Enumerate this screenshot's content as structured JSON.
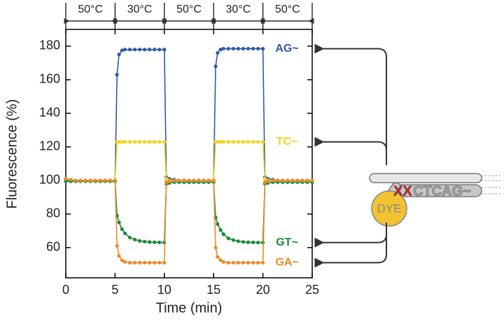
{
  "chart_data": {
    "type": "line",
    "xlabel": "Time (min)",
    "ylabel": "Fluorescence (%)",
    "xlim": [
      0,
      25
    ],
    "xticks": [
      0,
      5,
      10,
      15,
      20,
      25
    ],
    "ylim": [
      42,
      190
    ],
    "yticks": [
      60,
      80,
      100,
      120,
      140,
      160,
      180
    ],
    "temperatures": [
      "50°C",
      "30°C",
      "50°C",
      "30°C",
      "50°C"
    ],
    "x": [
      0,
      0.5,
      1,
      1.5,
      2,
      2.5,
      3,
      3.5,
      4,
      4.5,
      5,
      5.2,
      5.4,
      5.7,
      6,
      6.5,
      7,
      7.5,
      8,
      8.5,
      9,
      9.5,
      10,
      10.2,
      10.5,
      11,
      11.5,
      12,
      12.5,
      13,
      13.5,
      14,
      14.5,
      15,
      15.2,
      15.4,
      15.7,
      16,
      16.5,
      17,
      17.5,
      18,
      18.5,
      19,
      19.5,
      20,
      20.2,
      20.5,
      21,
      21.5,
      22,
      22.5,
      23,
      23.5,
      24,
      24.5,
      25
    ],
    "series": [
      {
        "name": "AG~",
        "color": "#2f5aa8",
        "values": [
          100,
          100,
          100,
          100,
          100,
          100,
          100,
          100,
          100,
          100,
          100,
          163,
          175,
          177.5,
          178,
          178,
          178,
          178,
          178,
          178,
          178,
          178,
          178,
          102,
          101,
          100.5,
          100,
          100,
          100,
          100,
          100,
          100,
          100,
          100,
          168,
          176,
          178,
          178.5,
          178.5,
          178.5,
          178.5,
          178.5,
          178.5,
          178.5,
          178.5,
          178.5,
          102,
          101,
          100.5,
          100,
          100,
          100,
          100,
          100,
          100,
          100,
          100
        ]
      },
      {
        "name": "TC~",
        "color": "#f2d41c",
        "values": [
          101,
          100,
          100,
          100,
          100,
          100,
          100,
          100,
          100,
          100,
          100,
          123,
          123,
          123,
          123,
          123,
          123,
          123,
          123,
          123,
          123,
          123,
          123,
          101,
          100,
          100,
          100,
          100,
          100,
          100,
          100,
          100,
          100,
          100,
          123,
          123,
          123,
          123,
          123,
          123,
          123,
          123,
          123,
          123,
          123,
          123,
          101,
          100,
          100,
          100,
          100,
          100,
          100,
          100,
          100,
          100,
          100
        ]
      },
      {
        "name": "GT~",
        "color": "#1a8a3a",
        "values": [
          99.5,
          99.5,
          99.5,
          99.5,
          99.5,
          99.5,
          99.5,
          99.5,
          99.5,
          99.5,
          99.5,
          79,
          75,
          71,
          68.5,
          66,
          64.8,
          64,
          63.6,
          63.3,
          63.2,
          63.1,
          63,
          98,
          98.5,
          99,
          99,
          99,
          99,
          99,
          99,
          99,
          99,
          99,
          78,
          74,
          70.5,
          68,
          65.5,
          64.5,
          63.8,
          63.4,
          63.2,
          63.1,
          63,
          63,
          98,
          98.5,
          99,
          99,
          99,
          99,
          99,
          99,
          99,
          99,
          99
        ]
      },
      {
        "name": "GA~",
        "color": "#ec8a2a",
        "values": [
          101,
          100.5,
          100,
          100,
          100,
          100,
          100,
          100,
          100,
          100,
          100,
          61,
          55,
          52.5,
          51.5,
          51,
          51,
          51,
          51,
          51,
          51,
          51,
          51,
          99,
          99.5,
          100,
          100,
          100,
          100,
          100,
          100,
          100,
          100,
          100,
          60,
          54.5,
          52.5,
          51.5,
          51,
          51,
          51,
          51,
          51,
          51,
          51,
          51,
          99,
          99.5,
          100,
          100,
          100,
          100,
          100,
          100,
          100,
          100,
          100
        ]
      }
    ]
  },
  "diagram": {
    "dye": "DYE",
    "mismatch": "XX",
    "sequence": "CTCAG~"
  }
}
